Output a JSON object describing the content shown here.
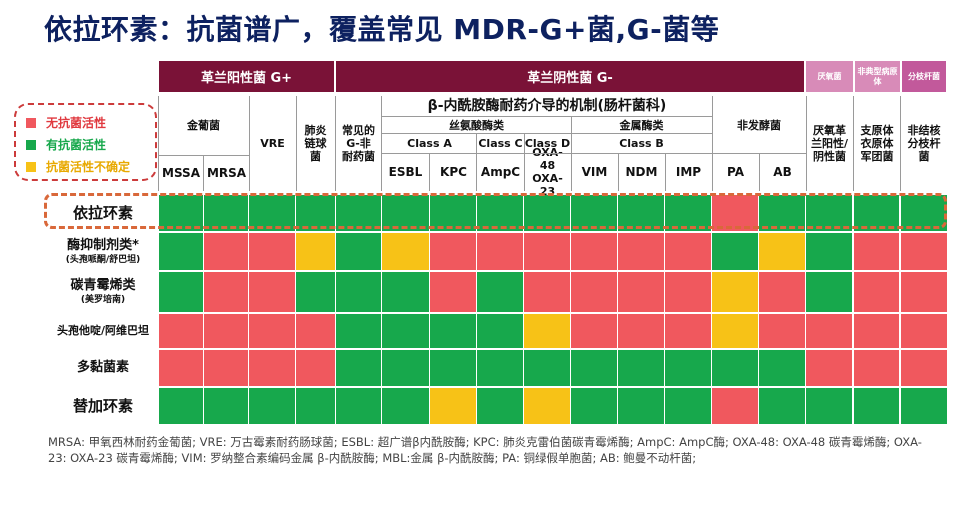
{
  "title": "依拉环素：抗菌谱广，覆盖常见 MDR-G+菌,G-菌等",
  "colors": {
    "green": "#17a84c",
    "red": "#f0585e",
    "yellow": "#f7c217",
    "band": "#7a1237",
    "pink": "#d88bb8",
    "pink_dark": "#c2599b",
    "highlight": "#d9683a"
  },
  "header": {
    "gram_positive": "革兰阳性菌 G+",
    "gram_negative": "革兰阴性菌 G-",
    "anaerobe": "厌氧菌",
    "atypical": "非典型病原体",
    "mycobacteria": "分枝杆菌",
    "s_aureus": "金葡菌",
    "mssa": "MSSA",
    "mrsa": "MRSA",
    "vre": "VRE",
    "pneumococcus": "肺炎链球菌",
    "common_g_neg": "常见的G-非耐药菌",
    "beta_lactamase_mech": "β-内酰胺酶耐药介导的机制(肠杆菌科)",
    "serine": "丝氨酸酶类",
    "metallo": "金属酶类",
    "class_a": "Class A",
    "class_c": "Class C",
    "class_d": "Class D",
    "class_b": "Class B",
    "esbl": "ESBL",
    "kpc": "KPC",
    "ampc": "AmpC",
    "oxa": "OXA-48 OXA-23",
    "vim": "VIM",
    "ndm": "NDM",
    "imp": "IMP",
    "non_fermenter": "非发酵菌",
    "pa": "PA",
    "ab": "AB",
    "anaerobe_gpgn": "厌氧革兰阳性/阴性菌",
    "mycoplasma": "支原体衣原体军团菌",
    "ntm": "非结核分枝杆菌"
  },
  "legend": [
    {
      "label": "无抗菌活性",
      "color": "red"
    },
    {
      "label": "有抗菌活性",
      "color": "green"
    },
    {
      "label": "抗菌活性不确定",
      "color": "yellow"
    }
  ],
  "rows": [
    {
      "name": "依拉环素",
      "note": "",
      "cells": [
        "G",
        "G",
        "G",
        "G",
        "G",
        "G",
        "G",
        "G",
        "G",
        "G",
        "G",
        "G",
        "R",
        "G",
        "G",
        "G",
        "G"
      ]
    },
    {
      "name": "酶抑制剂类*",
      "note": "(头孢哌酮/舒巴坦)",
      "cells": [
        "G",
        "R",
        "R",
        "Y",
        "G",
        "Y",
        "R",
        "R",
        "R",
        "R",
        "R",
        "R",
        "G",
        "Y",
        "G",
        "R",
        "R"
      ]
    },
    {
      "name": "碳青霉烯类",
      "note": "(美罗培南)",
      "cells": [
        "G",
        "R",
        "R",
        "G",
        "G",
        "G",
        "R",
        "G",
        "R",
        "R",
        "R",
        "R",
        "Y",
        "R",
        "G",
        "R",
        "R"
      ]
    },
    {
      "name": "头孢他啶/阿维巴坦",
      "note": "",
      "cells": [
        "R",
        "R",
        "R",
        "R",
        "G",
        "G",
        "G",
        "G",
        "Y",
        "R",
        "R",
        "R",
        "Y",
        "R",
        "R",
        "R",
        "R"
      ]
    },
    {
      "name": "多黏菌素",
      "note": "",
      "cells": [
        "R",
        "R",
        "R",
        "R",
        "G",
        "G",
        "G",
        "G",
        "G",
        "G",
        "G",
        "G",
        "G",
        "G",
        "R",
        "R",
        "R"
      ]
    },
    {
      "name": "替加环素",
      "note": "",
      "cells": [
        "G",
        "G",
        "G",
        "G",
        "G",
        "G",
        "Y",
        "G",
        "Y",
        "G",
        "G",
        "G",
        "R",
        "G",
        "G",
        "G",
        "G"
      ]
    }
  ],
  "footnote": "MRSA: 甲氧西林耐药金葡菌; VRE: 万古霉素耐药肠球菌; ESBL: 超广谱β内酰胺酶; KPC: 肺炎克雷伯菌碳青霉烯酶; AmpC: AmpC酶; OXA-48: OXA-48 碳青霉烯酶; OXA-23: OXA-23 碳青霉烯酶; VIM: 罗纳整合素编码金属 β-内酰胺酶; MBL:金属 β-内酰胺酶; PA: 铜绿假单胞菌; AB: 鲍曼不动杆菌;"
}
